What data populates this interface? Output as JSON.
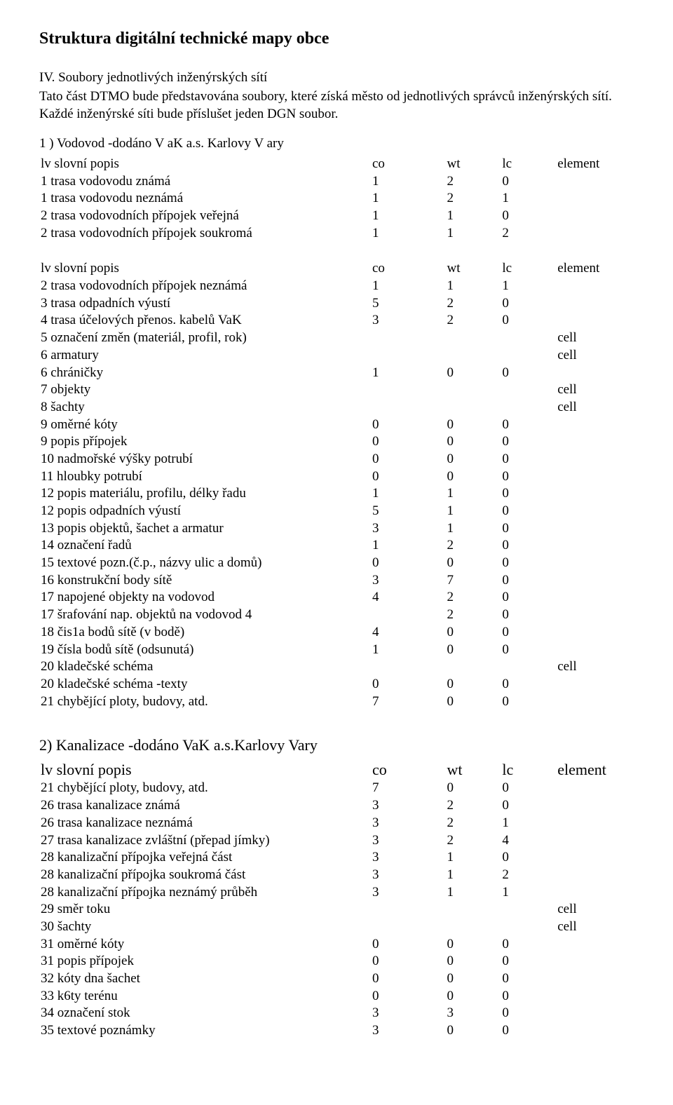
{
  "title": "Struktura digitální technické mapy obce",
  "intro_head": "IV. Soubory jednotlivých inženýrských sítí",
  "intro_body": "Tato část DTMO bude představována soubory, které získá město od jednotlivých správců inženýrských sítí. Každé inženýrské síti bude příslušet jeden DGN soubor.",
  "sections": [
    {
      "title": "1 ) Vodovod -dodáno V aK a.s. Karlovy V ary",
      "title_big": false,
      "header": {
        "label": "lv slovní popis",
        "co": "co",
        "wt": "wt",
        "lc": "lc",
        "el": "element"
      },
      "big_header": false,
      "rows": [
        {
          "desc": "1  trasa vodovodu známá",
          "co": "1",
          "wt": "2",
          "lc": "0"
        },
        {
          "desc": "1  trasa vodovodu neznámá",
          "co": "1",
          "wt": "2",
          "lc": "1"
        },
        {
          "desc": "2  trasa vodovodních přípojek veřejná",
          "co": "1",
          "wt": "1",
          "lc": "0"
        },
        {
          "desc": "2  trasa vodovodních přípojek soukromá",
          "co": "1",
          "wt": "1",
          "lc": "2"
        }
      ]
    },
    {
      "title": "",
      "title_big": false,
      "header": {
        "label": "lv  slovní popis",
        "co": "co",
        "wt": "wt",
        "lc": "lc",
        "el": "element"
      },
      "big_header": false,
      "rows": [
        {
          "desc": "2   trasa vodovodních přípojek neznámá",
          "co": "1",
          "wt": "1",
          "lc": "1"
        },
        {
          "desc": "3   trasa odpadních výustí",
          "co": "5",
          "wt": "2",
          "lc": "0"
        },
        {
          "desc": "4   trasa účelových přenos. kabelů VaK",
          "co": "3",
          "wt": "2",
          "lc": "0"
        },
        {
          "desc": "5   označení změn (materiál, profil, rok)",
          "el": "cell"
        },
        {
          "desc": "6   armatury",
          "el": "cell"
        },
        {
          "desc": "6   chráničky",
          "co": "1",
          "wt": "0",
          "lc": "0"
        },
        {
          "desc": "7   objekty",
          "el": "cell"
        },
        {
          "desc": "8   šachty",
          "el": "cell"
        },
        {
          "desc": "9   oměrné kóty",
          "co": "0",
          "wt": "0",
          "lc": "0"
        },
        {
          "desc": "9   popis přípojek",
          "co": "0",
          "wt": "0",
          "lc": "0"
        },
        {
          "desc": "10 nadmořské výšky potrubí",
          "co": "0",
          "wt": "0",
          "lc": "0"
        },
        {
          "desc": "11 hloubky potrubí",
          "co": "0",
          "wt": "0",
          "lc": "0"
        },
        {
          "desc": "12 popis materiálu, profilu, délky řadu",
          "co": "1",
          "wt": "1",
          "lc": "0"
        },
        {
          "desc": "12 popis odpadních výustí",
          "co": "5",
          "wt": "1",
          "lc": "0"
        },
        {
          "desc": "13 popis objektů, šachet a armatur",
          "co": "3",
          "wt": "1",
          "lc": "0"
        },
        {
          "desc": "14 označení řadů",
          "co": "1",
          "wt": "2",
          "lc": "0"
        },
        {
          "desc": "15 textové pozn.(č.p., názvy ulic a domů)",
          "co": "0",
          "wt": "0",
          "lc": "0"
        },
        {
          "desc": "16 konstrukční body sítě",
          "co": "3",
          "wt": "7",
          "lc": "0"
        },
        {
          "desc": "17 napojené objekty na vodovod",
          "co": "4",
          "wt": "2",
          "lc": "0"
        },
        {
          "desc": "17 šrafování nap. objektů na vodovod 4",
          "co": "",
          "wt": "2",
          "lc": "0"
        },
        {
          "desc": "18 čis1a bodů sítě (v bodě)",
          "co": "4",
          "wt": "0",
          "lc": "0"
        },
        {
          "desc": "19 čísla bodů sítě (odsunutá)",
          "co": "1",
          "wt": "0",
          "lc": "0"
        },
        {
          "desc": "20 kladečské schéma",
          "el": "cell"
        },
        {
          "desc": "20 kladečské schéma -texty",
          "co": "0",
          "wt": "0",
          "lc": "0"
        },
        {
          "desc": "21 chybějící ploty, budovy, atd.",
          "co": "7",
          "wt": "0",
          "lc": "0"
        }
      ]
    },
    {
      "title": "2) Kanalizace -dodáno VaK a.s.Karlovy Vary",
      "title_big": true,
      "header": {
        "label": "lv  slovní popis",
        "co": "co",
        "wt": "wt",
        "lc": "lc",
        "el": "element"
      },
      "big_header": true,
      "rows": [
        {
          "desc": "21 chybějící ploty, budovy, atd.",
          "co": "7",
          "wt": "0",
          "lc": "0"
        },
        {
          "desc": "26 trasa kanalizace známá",
          "co": "3",
          "wt": "2",
          "lc": "0"
        },
        {
          "desc": "26 trasa kanalizace neznámá",
          "co": "3",
          "wt": "2",
          "lc": "1"
        },
        {
          "desc": "27 trasa kanalizace zvláštní (přepad jímky)",
          "co": "3",
          "wt": "2",
          "lc": "4"
        },
        {
          "desc": "28 kanalizační přípojka veřejná část",
          "co": "3",
          "wt": "1",
          "lc": "0"
        },
        {
          "desc": "28 kanalizační přípojka soukromá část",
          "co": "3",
          "wt": "1",
          "lc": "2"
        },
        {
          "desc": "28 kanalizační přípojka neznámý průběh",
          "co": "3",
          "wt": "1",
          "lc": "1"
        },
        {
          "desc": "29 směr toku",
          "el": "cell"
        },
        {
          "desc": "30 šachty",
          "el": "cell"
        },
        {
          "desc": "31 oměrné kóty",
          "co": "0",
          "wt": "0",
          "lc": "0"
        },
        {
          "desc": "31 popis přípojek",
          "co": "0",
          "wt": "0",
          "lc": "0"
        },
        {
          "desc": "32 kóty dna šachet",
          "co": "0",
          "wt": "0",
          "lc": "0"
        },
        {
          "desc": "33 k6ty terénu",
          "co": "0",
          "wt": "0",
          "lc": "0"
        },
        {
          "desc": "34 označení stok",
          "co": "3",
          "wt": "3",
          "lc": "0"
        },
        {
          "desc": "35 textové poznámky",
          "co": "3",
          "wt": "0",
          "lc": "0"
        }
      ]
    }
  ]
}
